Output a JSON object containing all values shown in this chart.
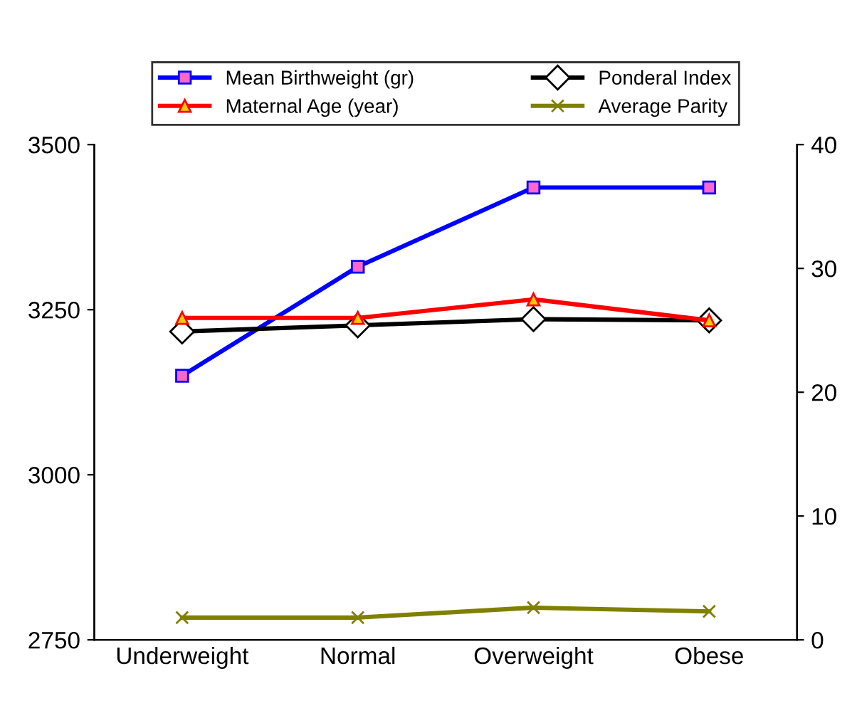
{
  "chart_data": {
    "type": "line",
    "categories": [
      "Underweight",
      "Normal",
      "Overweight",
      "Obese"
    ],
    "series": [
      {
        "name": "Mean Birthweight (gr)",
        "color": "#0000ff",
        "marker": "square",
        "values": [
          3150,
          3315,
          3435,
          3435
        ]
      },
      {
        "name": "Ponderal Index",
        "color": "#000000",
        "marker": "diamond",
        "axis": "y2",
        "values": [
          24.9,
          25.4,
          25.9,
          25.8
        ]
      },
      {
        "name": "Maternal Age (year)",
        "color": "#ff0000",
        "marker": "triangle",
        "axis": "y2",
        "values": [
          26.0,
          26.0,
          27.5,
          25.8
        ]
      },
      {
        "name": "Average Parity",
        "color": "#808000",
        "marker": "cross",
        "axis": "y2",
        "values": [
          1.8,
          1.8,
          2.6,
          2.3
        ]
      }
    ],
    "ylim": [
      2750,
      3500
    ],
    "yticks": [
      2750,
      3000,
      3250,
      3500
    ],
    "y2lim": [
      0,
      40
    ],
    "y2ticks": [
      0,
      10,
      20,
      30,
      40
    ],
    "grid": false,
    "legend": "top",
    "line_style": "solid"
  }
}
